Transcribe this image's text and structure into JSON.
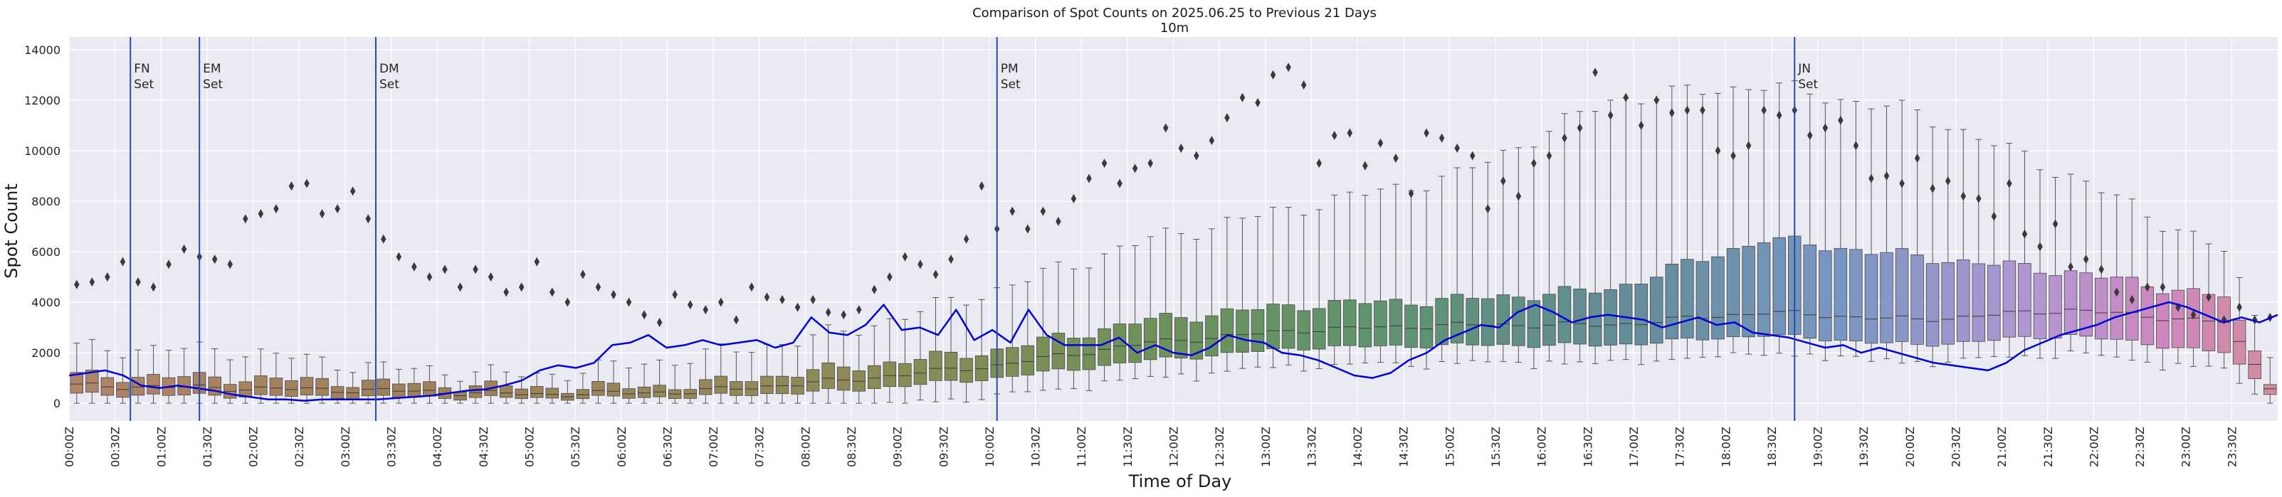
{
  "chart_data": {
    "type": "box",
    "title": "Comparison of Spot Counts on 2025.06.25 to Previous 21 Days",
    "subtitle": "10m",
    "xlabel": "Time of Day",
    "ylabel": "Spot Count",
    "ylim": [
      -700,
      14500
    ],
    "yticks": [
      0,
      2000,
      4000,
      6000,
      8000,
      10000,
      12000,
      14000
    ],
    "ytick_labels": [
      "0",
      "2000",
      "4000",
      "6000",
      "8000",
      "10000",
      "12000",
      "14000"
    ],
    "grid": true,
    "bin_minutes": 10,
    "num_bins": 144,
    "xtick_labels": [
      "00:00Z",
      "00:30Z",
      "01:00Z",
      "01:30Z",
      "02:00Z",
      "02:30Z",
      "03:00Z",
      "03:30Z",
      "04:00Z",
      "04:30Z",
      "05:00Z",
      "05:30Z",
      "06:00Z",
      "06:30Z",
      "07:00Z",
      "07:30Z",
      "08:00Z",
      "08:30Z",
      "09:00Z",
      "09:30Z",
      "10:00Z",
      "10:30Z",
      "11:00Z",
      "11:30Z",
      "12:00Z",
      "12:30Z",
      "13:00Z",
      "13:30Z",
      "14:00Z",
      "14:30Z",
      "15:00Z",
      "15:30Z",
      "16:00Z",
      "16:30Z",
      "17:00Z",
      "17:30Z",
      "18:00Z",
      "18:30Z",
      "19:00Z",
      "19:30Z",
      "20:00Z",
      "20:30Z",
      "21:00Z",
      "21:30Z",
      "22:00Z",
      "22:30Z",
      "23:00Z",
      "23:30Z"
    ],
    "series_line": {
      "name": "2025.06.25",
      "color": "#0000dd",
      "anchors": [
        [
          0,
          1100
        ],
        [
          2,
          1200
        ],
        [
          4,
          1300
        ],
        [
          6,
          1100
        ],
        [
          8,
          700
        ],
        [
          10,
          600
        ],
        [
          12,
          700
        ],
        [
          14,
          600
        ],
        [
          16,
          500
        ],
        [
          18,
          350
        ],
        [
          20,
          250
        ],
        [
          22,
          150
        ],
        [
          24,
          150
        ],
        [
          26,
          100
        ],
        [
          28,
          150
        ],
        [
          30,
          150
        ],
        [
          32,
          150
        ],
        [
          34,
          150
        ],
        [
          36,
          200
        ],
        [
          38,
          250
        ],
        [
          40,
          300
        ],
        [
          42,
          400
        ],
        [
          44,
          500
        ],
        [
          46,
          550
        ],
        [
          48,
          700
        ],
        [
          50,
          900
        ],
        [
          52,
          1300
        ],
        [
          54,
          1500
        ],
        [
          56,
          1400
        ],
        [
          58,
          1600
        ],
        [
          60,
          2300
        ],
        [
          62,
          2400
        ],
        [
          64,
          2700
        ],
        [
          66,
          2200
        ],
        [
          68,
          2300
        ],
        [
          70,
          2500
        ],
        [
          72,
          2300
        ],
        [
          74,
          2400
        ],
        [
          76,
          2500
        ],
        [
          78,
          2200
        ],
        [
          80,
          2400
        ],
        [
          82,
          3400
        ],
        [
          84,
          2800
        ],
        [
          86,
          2700
        ],
        [
          88,
          3100
        ],
        [
          90,
          3900
        ],
        [
          92,
          2900
        ],
        [
          94,
          3000
        ],
        [
          96,
          2700
        ],
        [
          98,
          3700
        ],
        [
          100,
          2500
        ],
        [
          102,
          2900
        ],
        [
          104,
          2400
        ],
        [
          106,
          3700
        ],
        [
          108,
          2700
        ],
        [
          110,
          2300
        ],
        [
          112,
          2300
        ],
        [
          114,
          2300
        ],
        [
          116,
          2600
        ],
        [
          118,
          2000
        ],
        [
          120,
          2300
        ],
        [
          122,
          2000
        ],
        [
          124,
          1900
        ],
        [
          126,
          2200
        ],
        [
          128,
          2700
        ],
        [
          130,
          2500
        ],
        [
          132,
          2400
        ],
        [
          134,
          2000
        ],
        [
          136,
          1900
        ],
        [
          138,
          1700
        ],
        [
          140,
          1400
        ],
        [
          142,
          1100
        ],
        [
          144,
          1000
        ],
        [
          146,
          1200
        ],
        [
          148,
          1700
        ],
        [
          150,
          2000
        ],
        [
          152,
          2500
        ],
        [
          154,
          2800
        ],
        [
          156,
          3100
        ],
        [
          158,
          3000
        ],
        [
          160,
          3600
        ],
        [
          162,
          3900
        ],
        [
          164,
          3600
        ],
        [
          166,
          3200
        ],
        [
          168,
          3400
        ],
        [
          170,
          3500
        ],
        [
          172,
          3400
        ],
        [
          174,
          3300
        ],
        [
          176,
          3000
        ],
        [
          178,
          3200
        ],
        [
          180,
          3400
        ],
        [
          182,
          3100
        ],
        [
          184,
          3200
        ],
        [
          186,
          2800
        ],
        [
          188,
          2700
        ],
        [
          190,
          2600
        ],
        [
          192,
          2400
        ],
        [
          194,
          2200
        ],
        [
          196,
          2300
        ],
        [
          198,
          2000
        ],
        [
          200,
          2200
        ],
        [
          202,
          2000
        ],
        [
          204,
          1800
        ],
        [
          206,
          1600
        ],
        [
          208,
          1500
        ],
        [
          210,
          1400
        ],
        [
          212,
          1300
        ],
        [
          214,
          1600
        ],
        [
          216,
          2100
        ],
        [
          218,
          2400
        ],
        [
          220,
          2700
        ],
        [
          222,
          2900
        ],
        [
          224,
          3100
        ],
        [
          226,
          3400
        ],
        [
          228,
          3600
        ],
        [
          230,
          3800
        ],
        [
          232,
          4000
        ],
        [
          234,
          3800
        ],
        [
          236,
          3500
        ],
        [
          238,
          3200
        ],
        [
          240,
          3400
        ],
        [
          242,
          3200
        ],
        [
          244,
          3500
        ]
      ],
      "anchors_note": "x-anchor values are in units of x-position steps where 244 spans the full day (00:00Z to ~24:00Z)"
    },
    "box_profile": {
      "note": "median / quartiles / whisker top by bin index (0..143), estimated from image",
      "median_anchors": [
        [
          0,
          700
        ],
        [
          10,
          600
        ],
        [
          20,
          500
        ],
        [
          30,
          350
        ],
        [
          40,
          450
        ],
        [
          50,
          900
        ],
        [
          60,
          1500
        ],
        [
          70,
          2400
        ],
        [
          80,
          2900
        ],
        [
          90,
          3100
        ],
        [
          100,
          3100
        ],
        [
          110,
          3600
        ],
        [
          120,
          3300
        ],
        [
          130,
          3700
        ],
        [
          140,
          3200
        ],
        [
          143,
          700
        ]
      ],
      "q1_anchors": [
        [
          0,
          350
        ],
        [
          10,
          300
        ],
        [
          20,
          250
        ],
        [
          30,
          200
        ],
        [
          40,
          250
        ],
        [
          50,
          500
        ],
        [
          60,
          1000
        ],
        [
          70,
          1700
        ],
        [
          80,
          2200
        ],
        [
          90,
          2300
        ],
        [
          100,
          2300
        ],
        [
          110,
          2700
        ],
        [
          120,
          2300
        ],
        [
          130,
          2700
        ],
        [
          140,
          2000
        ],
        [
          143,
          450
        ]
      ],
      "q3_anchors": [
        [
          0,
          1100
        ],
        [
          10,
          1000
        ],
        [
          20,
          800
        ],
        [
          30,
          600
        ],
        [
          40,
          700
        ],
        [
          50,
          1400
        ],
        [
          60,
          2100
        ],
        [
          70,
          3300
        ],
        [
          80,
          3900
        ],
        [
          90,
          4100
        ],
        [
          100,
          4500
        ],
        [
          110,
          6500
        ],
        [
          120,
          5800
        ],
        [
          130,
          5200
        ],
        [
          140,
          4200
        ],
        [
          143,
          1000
        ]
      ],
      "whisker_top_anchors": [
        [
          0,
          2200
        ],
        [
          10,
          2100
        ],
        [
          20,
          1400
        ],
        [
          30,
          1100
        ],
        [
          40,
          1800
        ],
        [
          50,
          2800
        ],
        [
          60,
          4500
        ],
        [
          70,
          6500
        ],
        [
          80,
          7800
        ],
        [
          90,
          9000
        ],
        [
          100,
          12000
        ],
        [
          110,
          12600
        ],
        [
          120,
          11500
        ],
        [
          130,
          9000
        ],
        [
          140,
          6000
        ],
        [
          143,
          2200
        ]
      ],
      "outliers": [
        [
          0,
          4700
        ],
        [
          1,
          4800
        ],
        [
          2,
          5000
        ],
        [
          3,
          5600
        ],
        [
          4,
          4800
        ],
        [
          5,
          4600
        ],
        [
          6,
          5500
        ],
        [
          7,
          6100
        ],
        [
          8,
          5800
        ],
        [
          9,
          5700
        ],
        [
          10,
          5500
        ],
        [
          11,
          7300
        ],
        [
          12,
          7500
        ],
        [
          13,
          7700
        ],
        [
          14,
          8600
        ],
        [
          15,
          8700
        ],
        [
          16,
          7500
        ],
        [
          17,
          7700
        ],
        [
          18,
          8400
        ],
        [
          19,
          7300
        ],
        [
          20,
          6500
        ],
        [
          21,
          5800
        ],
        [
          22,
          5400
        ],
        [
          23,
          5000
        ],
        [
          24,
          5300
        ],
        [
          25,
          4600
        ],
        [
          26,
          5300
        ],
        [
          27,
          5000
        ],
        [
          28,
          4400
        ],
        [
          29,
          4600
        ],
        [
          30,
          5600
        ],
        [
          31,
          4400
        ],
        [
          32,
          4000
        ],
        [
          33,
          5100
        ],
        [
          34,
          4600
        ],
        [
          35,
          4300
        ],
        [
          36,
          4000
        ],
        [
          37,
          3500
        ],
        [
          38,
          3200
        ],
        [
          39,
          4300
        ],
        [
          40,
          3900
        ],
        [
          41,
          3700
        ],
        [
          42,
          4000
        ],
        [
          43,
          3300
        ],
        [
          44,
          4600
        ],
        [
          45,
          4200
        ],
        [
          46,
          4100
        ],
        [
          47,
          3800
        ],
        [
          48,
          4100
        ],
        [
          49,
          3600
        ],
        [
          50,
          3500
        ],
        [
          51,
          3700
        ],
        [
          52,
          4500
        ],
        [
          53,
          5000
        ],
        [
          54,
          5800
        ],
        [
          55,
          5500
        ],
        [
          56,
          5100
        ],
        [
          57,
          5700
        ],
        [
          58,
          6500
        ],
        [
          59,
          8600
        ],
        [
          60,
          6900
        ],
        [
          61,
          7600
        ],
        [
          62,
          6900
        ],
        [
          63,
          7600
        ],
        [
          64,
          7200
        ],
        [
          65,
          8100
        ],
        [
          66,
          8900
        ],
        [
          67,
          9500
        ],
        [
          68,
          8700
        ],
        [
          69,
          9300
        ],
        [
          70,
          9500
        ],
        [
          71,
          10900
        ],
        [
          72,
          10100
        ],
        [
          73,
          9800
        ],
        [
          74,
          10400
        ],
        [
          75,
          11300
        ],
        [
          76,
          12100
        ],
        [
          77,
          11900
        ],
        [
          78,
          13000
        ],
        [
          79,
          13300
        ],
        [
          80,
          12600
        ],
        [
          81,
          9500
        ],
        [
          82,
          10600
        ],
        [
          83,
          10700
        ],
        [
          84,
          9400
        ],
        [
          85,
          10300
        ],
        [
          86,
          9700
        ],
        [
          87,
          8300
        ],
        [
          88,
          10700
        ],
        [
          89,
          10500
        ],
        [
          90,
          10100
        ],
        [
          91,
          9800
        ],
        [
          92,
          7700
        ],
        [
          93,
          8800
        ],
        [
          94,
          8200
        ],
        [
          95,
          9500
        ],
        [
          96,
          9800
        ],
        [
          97,
          10500
        ],
        [
          98,
          10900
        ],
        [
          99,
          13100
        ],
        [
          100,
          11400
        ],
        [
          101,
          12100
        ],
        [
          102,
          11000
        ],
        [
          103,
          12000
        ],
        [
          104,
          11500
        ],
        [
          105,
          11600
        ],
        [
          106,
          11600
        ],
        [
          107,
          10000
        ],
        [
          108,
          9800
        ],
        [
          109,
          10200
        ],
        [
          110,
          11600
        ],
        [
          111,
          11400
        ],
        [
          112,
          11600
        ],
        [
          113,
          10600
        ],
        [
          114,
          10900
        ],
        [
          115,
          11200
        ],
        [
          116,
          10200
        ],
        [
          117,
          8900
        ],
        [
          118,
          9000
        ],
        [
          119,
          8700
        ],
        [
          120,
          9700
        ],
        [
          121,
          8500
        ],
        [
          122,
          8800
        ],
        [
          123,
          8200
        ],
        [
          124,
          8100
        ],
        [
          125,
          7400
        ],
        [
          126,
          8700
        ],
        [
          127,
          6700
        ],
        [
          128,
          6200
        ],
        [
          129,
          7100
        ],
        [
          130,
          5400
        ],
        [
          131,
          5700
        ],
        [
          132,
          5300
        ],
        [
          133,
          4400
        ],
        [
          134,
          4100
        ],
        [
          135,
          4600
        ],
        [
          136,
          4600
        ],
        [
          137,
          3800
        ],
        [
          138,
          3500
        ],
        [
          139,
          4200
        ],
        [
          140,
          3300
        ],
        [
          141,
          3800
        ],
        [
          142,
          3300
        ],
        [
          143,
          3400
        ]
      ]
    },
    "annotations": [
      {
        "x_minutes": 40,
        "label_line1": "FN",
        "label_line2": "Set"
      },
      {
        "x_minutes": 85,
        "label_line1": "EM",
        "label_line2": "Set"
      },
      {
        "x_minutes": 200,
        "label_line1": "DM",
        "label_line2": "Set"
      },
      {
        "x_minutes": 605,
        "label_line1": "PM",
        "label_line2": "Set"
      },
      {
        "x_minutes": 1125,
        "label_line1": "JN",
        "label_line2": "Set"
      }
    ],
    "colors": {
      "background": "#eaeaf2",
      "grid": "#ffffff",
      "annotation_line": "#2b4aaa",
      "box_edge": "#555555",
      "outlier": "#3a3a3a"
    }
  }
}
